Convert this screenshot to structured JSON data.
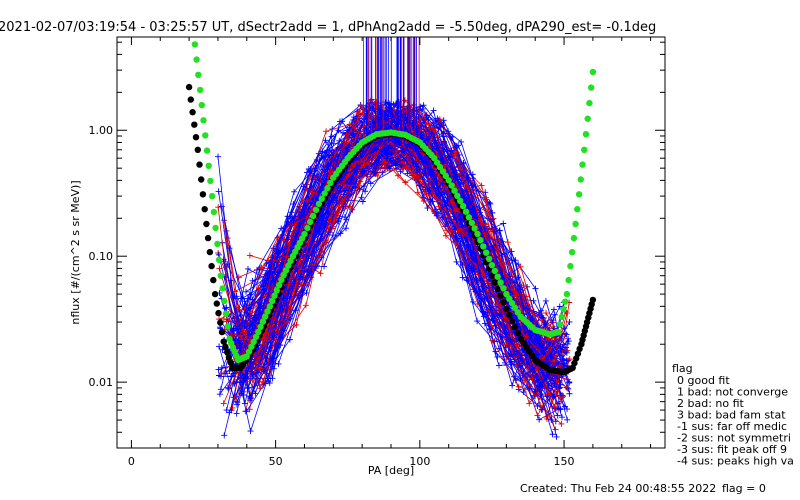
{
  "chart_data": {
    "type": "scatter",
    "title": "2021-02-07/03:19:54 - 03:25:57 UT, dSectr2add = 1, dPhAng2add = -5.50deg, dPA290_est=  -0.1deg",
    "xlabel": "PA [deg]",
    "ylabel": "nflux [#/(cm^2 s sr MeV)]",
    "xlim": [
      -5,
      185
    ],
    "ylim": [
      0.003,
      5.5
    ],
    "yscale": "log",
    "x_ticks": [
      0,
      50,
      100,
      150
    ],
    "y_ticks": [
      0.01,
      0.1,
      1.0
    ],
    "x_tick_labels": [
      "0",
      "50",
      "100",
      "150"
    ],
    "y_tick_labels": [
      "0.01",
      "0.10",
      "1.00"
    ],
    "grid": false,
    "colors": {
      "fit_black": "#000000",
      "fit_green": "#22e022",
      "data_blue": "#0000ff",
      "data_red": "#e00000",
      "axis": "#000000"
    },
    "series": [
      {
        "color": "#000000",
        "style": "thick-dots",
        "x": [
          20,
          23,
          26,
          29,
          32,
          35,
          38,
          42,
          46,
          50,
          55,
          60,
          65,
          70,
          75,
          80,
          85,
          90,
          95,
          100,
          105,
          110,
          115,
          120,
          125,
          130,
          135,
          140,
          145,
          150,
          153,
          156,
          158,
          160
        ],
        "y": [
          2.2,
          0.7,
          0.18,
          0.05,
          0.021,
          0.013,
          0.013,
          0.018,
          0.028,
          0.045,
          0.08,
          0.14,
          0.24,
          0.38,
          0.56,
          0.76,
          0.9,
          0.94,
          0.9,
          0.78,
          0.58,
          0.38,
          0.23,
          0.13,
          0.07,
          0.038,
          0.022,
          0.015,
          0.0125,
          0.012,
          0.013,
          0.02,
          0.03,
          0.045
        ]
      },
      {
        "color": "#22e022",
        "style": "thick-dots",
        "x": [
          22,
          25,
          28,
          31,
          34,
          37,
          40,
          44,
          48,
          52,
          56,
          60,
          65,
          70,
          75,
          80,
          85,
          90,
          95,
          100,
          105,
          110,
          115,
          120,
          125,
          130,
          135,
          140,
          145,
          148,
          151,
          154,
          157,
          160
        ],
        "y": [
          4.8,
          1.2,
          0.3,
          0.07,
          0.022,
          0.015,
          0.016,
          0.025,
          0.04,
          0.065,
          0.1,
          0.15,
          0.26,
          0.42,
          0.6,
          0.8,
          0.93,
          0.96,
          0.92,
          0.8,
          0.6,
          0.4,
          0.25,
          0.15,
          0.085,
          0.05,
          0.033,
          0.026,
          0.024,
          0.025,
          0.05,
          0.18,
          0.7,
          2.9
        ]
      }
    ],
    "legend": {
      "position": "right-outside",
      "title": "flag",
      "entries": [
        "0 good fit",
        "1 bad: not converge",
        "2 bad: no fit",
        "3 bad: bad fam stat",
        "-1 sus: far off medic",
        "-2 sus: not symmetri",
        "-3 sus: fit peak off 9",
        "-4 sus: peaks high va"
      ]
    },
    "annotations": [
      "Created: Thu Feb 24 00:48:55 2022",
      "flag = 0"
    ]
  }
}
